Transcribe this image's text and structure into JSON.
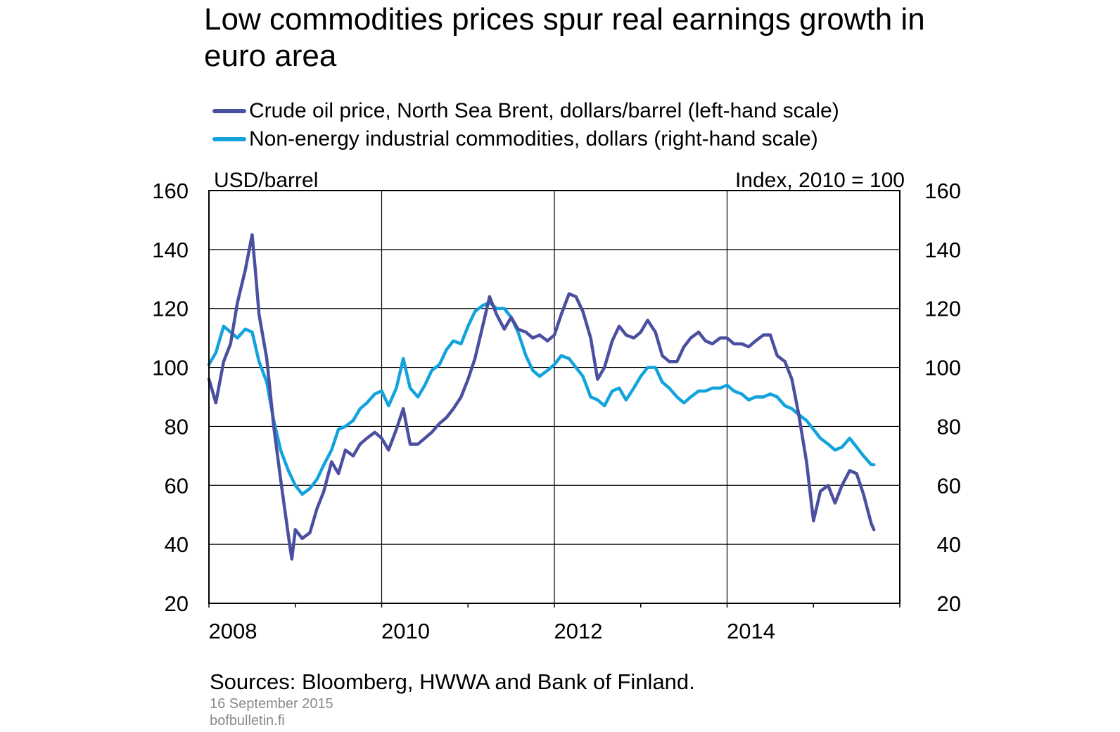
{
  "page": {
    "title": "Low commodities prices spur real earnings growth in euro area",
    "source": "Sources: Bloomberg,  HWWA and Bank of Finland.",
    "date": "16 September 2015",
    "site": "bofbulletin.fi"
  },
  "chart_data": {
    "type": "line",
    "title": "Low commodities prices spur real earnings growth in euro area",
    "ylabel_left": "USD/barrel",
    "ylabel_right": "Index, 2010 = 100",
    "xlim": [
      2008.0,
      2016.0
    ],
    "ylim": [
      20,
      160
    ],
    "y_ticks": [
      20,
      40,
      60,
      80,
      100,
      120,
      140,
      160
    ],
    "x_tick_labels": [
      "2008",
      "2010",
      "2012",
      "2014"
    ],
    "x_tick_values": [
      2008,
      2010,
      2012,
      2014
    ],
    "grid": true,
    "series": [
      {
        "name": "Crude oil price, North Sea Brent, dollars/barrel (left-hand scale)",
        "axis": "left",
        "color": "#4b4fa0",
        "x": [
          2008.0,
          2008.08,
          2008.17,
          2008.25,
          2008.33,
          2008.42,
          2008.5,
          2008.54,
          2008.58,
          2008.67,
          2008.75,
          2008.83,
          2008.92,
          2008.96,
          2009.0,
          2009.08,
          2009.17,
          2009.25,
          2009.33,
          2009.42,
          2009.5,
          2009.58,
          2009.67,
          2009.75,
          2009.83,
          2009.92,
          2010.0,
          2010.08,
          2010.17,
          2010.25,
          2010.33,
          2010.42,
          2010.5,
          2010.58,
          2010.67,
          2010.75,
          2010.83,
          2010.92,
          2011.0,
          2011.08,
          2011.17,
          2011.25,
          2011.33,
          2011.42,
          2011.5,
          2011.58,
          2011.67,
          2011.75,
          2011.83,
          2011.92,
          2012.0,
          2012.08,
          2012.17,
          2012.25,
          2012.33,
          2012.42,
          2012.5,
          2012.58,
          2012.67,
          2012.75,
          2012.83,
          2012.92,
          2013.0,
          2013.08,
          2013.17,
          2013.25,
          2013.33,
          2013.42,
          2013.5,
          2013.58,
          2013.67,
          2013.75,
          2013.83,
          2013.92,
          2014.0,
          2014.08,
          2014.17,
          2014.25,
          2014.33,
          2014.42,
          2014.5,
          2014.58,
          2014.67,
          2014.75,
          2014.83,
          2014.92,
          2015.0,
          2015.08,
          2015.17,
          2015.25,
          2015.33,
          2015.42,
          2015.5,
          2015.58,
          2015.67,
          2015.7
        ],
        "values": [
          96,
          88,
          102,
          108,
          122,
          133,
          145,
          132,
          118,
          103,
          80,
          62,
          43,
          35,
          45,
          42,
          44,
          52,
          58,
          68,
          64,
          72,
          70,
          74,
          76,
          78,
          76,
          72,
          79,
          86,
          74,
          74,
          76,
          78,
          81,
          83,
          86,
          90,
          96,
          103,
          114,
          124,
          118,
          113,
          117,
          113,
          112,
          110,
          111,
          109,
          111,
          118,
          125,
          124,
          119,
          110,
          96,
          100,
          109,
          114,
          111,
          110,
          112,
          116,
          112,
          104,
          102,
          102,
          107,
          110,
          112,
          109,
          108,
          110,
          110,
          108,
          108,
          107,
          109,
          111,
          111,
          104,
          102,
          96,
          84,
          68,
          48,
          58,
          60,
          54,
          60,
          65,
          64,
          57,
          47,
          45
        ]
      },
      {
        "name": "Non-energy industrial commodities, dollars (right-hand scale)",
        "axis": "right",
        "color": "#12a3dc",
        "x": [
          2008.0,
          2008.08,
          2008.17,
          2008.25,
          2008.33,
          2008.42,
          2008.5,
          2008.58,
          2008.67,
          2008.75,
          2008.83,
          2008.92,
          2009.0,
          2009.08,
          2009.17,
          2009.25,
          2009.33,
          2009.42,
          2009.5,
          2009.58,
          2009.67,
          2009.75,
          2009.83,
          2009.92,
          2010.0,
          2010.08,
          2010.17,
          2010.25,
          2010.33,
          2010.42,
          2010.5,
          2010.58,
          2010.67,
          2010.75,
          2010.83,
          2010.92,
          2011.0,
          2011.08,
          2011.17,
          2011.25,
          2011.33,
          2011.42,
          2011.5,
          2011.58,
          2011.67,
          2011.75,
          2011.83,
          2011.92,
          2012.0,
          2012.08,
          2012.17,
          2012.25,
          2012.33,
          2012.42,
          2012.5,
          2012.58,
          2012.67,
          2012.75,
          2012.83,
          2012.92,
          2013.0,
          2013.08,
          2013.17,
          2013.25,
          2013.33,
          2013.42,
          2013.5,
          2013.58,
          2013.67,
          2013.75,
          2013.83,
          2013.92,
          2014.0,
          2014.08,
          2014.17,
          2014.25,
          2014.33,
          2014.42,
          2014.5,
          2014.58,
          2014.67,
          2014.75,
          2014.83,
          2014.92,
          2015.0,
          2015.08,
          2015.17,
          2015.25,
          2015.33,
          2015.42,
          2015.5,
          2015.58,
          2015.67,
          2015.7
        ],
        "values": [
          101,
          105,
          114,
          112,
          110,
          113,
          112,
          102,
          95,
          82,
          72,
          65,
          60,
          57,
          59,
          62,
          67,
          72,
          79,
          80,
          82,
          86,
          88,
          91,
          92,
          87,
          93,
          103,
          93,
          90,
          94,
          99,
          101,
          106,
          109,
          108,
          114,
          119,
          121,
          122,
          120,
          120,
          117,
          112,
          104,
          99,
          97,
          99,
          101,
          104,
          103,
          100,
          97,
          90,
          89,
          87,
          92,
          93,
          89,
          93,
          97,
          100,
          100,
          95,
          93,
          90,
          88,
          90,
          92,
          92,
          93,
          93,
          94,
          92,
          91,
          89,
          90,
          90,
          91,
          90,
          87,
          86,
          84,
          82,
          79,
          76,
          74,
          72,
          73,
          76,
          73,
          70,
          67,
          67
        ]
      }
    ]
  }
}
